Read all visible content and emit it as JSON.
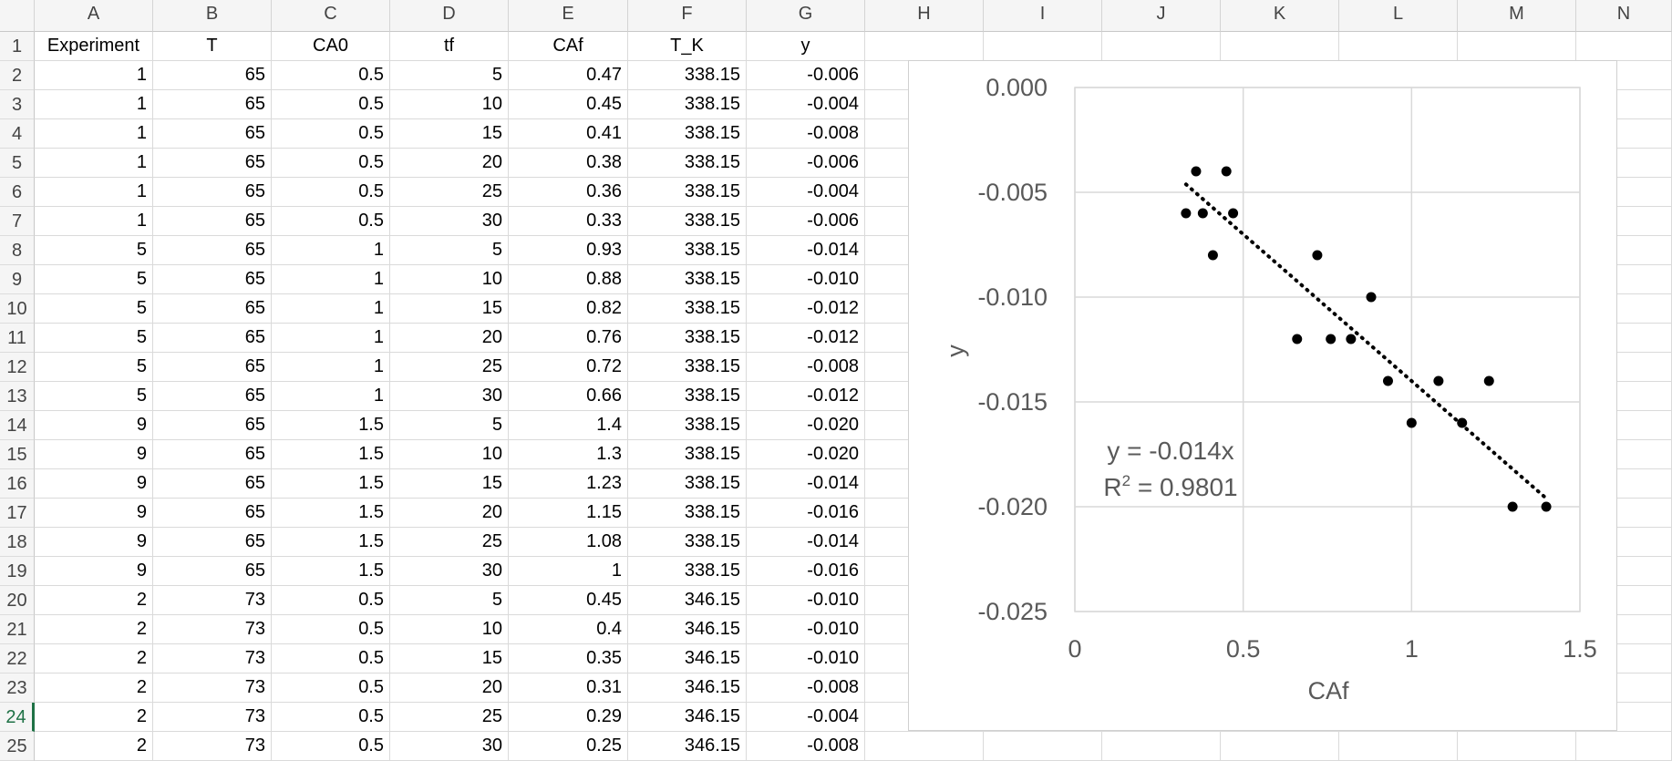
{
  "columns": [
    "A",
    "B",
    "C",
    "D",
    "E",
    "F",
    "G",
    "H",
    "I",
    "J",
    "K",
    "L",
    "M",
    "N"
  ],
  "selected_row": 24,
  "flagged_rows": [
    8,
    14,
    20
  ],
  "headers": [
    "Experiment",
    "T",
    "CA0",
    "tf",
    "CAf",
    "T_K",
    "y"
  ],
  "rows": [
    {
      "row": 2,
      "cells": [
        "1",
        "65",
        "0.5",
        "5",
        "0.47",
        "338.15",
        "-0.006"
      ]
    },
    {
      "row": 3,
      "cells": [
        "1",
        "65",
        "0.5",
        "10",
        "0.45",
        "338.15",
        "-0.004"
      ]
    },
    {
      "row": 4,
      "cells": [
        "1",
        "65",
        "0.5",
        "15",
        "0.41",
        "338.15",
        "-0.008"
      ]
    },
    {
      "row": 5,
      "cells": [
        "1",
        "65",
        "0.5",
        "20",
        "0.38",
        "338.15",
        "-0.006"
      ]
    },
    {
      "row": 6,
      "cells": [
        "1",
        "65",
        "0.5",
        "25",
        "0.36",
        "338.15",
        "-0.004"
      ]
    },
    {
      "row": 7,
      "cells": [
        "1",
        "65",
        "0.5",
        "30",
        "0.33",
        "338.15",
        "-0.006"
      ]
    },
    {
      "row": 8,
      "cells": [
        "5",
        "65",
        "1",
        "5",
        "0.93",
        "338.15",
        "-0.014"
      ]
    },
    {
      "row": 9,
      "cells": [
        "5",
        "65",
        "1",
        "10",
        "0.88",
        "338.15",
        "-0.010"
      ]
    },
    {
      "row": 10,
      "cells": [
        "5",
        "65",
        "1",
        "15",
        "0.82",
        "338.15",
        "-0.012"
      ]
    },
    {
      "row": 11,
      "cells": [
        "5",
        "65",
        "1",
        "20",
        "0.76",
        "338.15",
        "-0.012"
      ]
    },
    {
      "row": 12,
      "cells": [
        "5",
        "65",
        "1",
        "25",
        "0.72",
        "338.15",
        "-0.008"
      ]
    },
    {
      "row": 13,
      "cells": [
        "5",
        "65",
        "1",
        "30",
        "0.66",
        "338.15",
        "-0.012"
      ]
    },
    {
      "row": 14,
      "cells": [
        "9",
        "65",
        "1.5",
        "5",
        "1.4",
        "338.15",
        "-0.020"
      ]
    },
    {
      "row": 15,
      "cells": [
        "9",
        "65",
        "1.5",
        "10",
        "1.3",
        "338.15",
        "-0.020"
      ]
    },
    {
      "row": 16,
      "cells": [
        "9",
        "65",
        "1.5",
        "15",
        "1.23",
        "338.15",
        "-0.014"
      ]
    },
    {
      "row": 17,
      "cells": [
        "9",
        "65",
        "1.5",
        "20",
        "1.15",
        "338.15",
        "-0.016"
      ]
    },
    {
      "row": 18,
      "cells": [
        "9",
        "65",
        "1.5",
        "25",
        "1.08",
        "338.15",
        "-0.014"
      ]
    },
    {
      "row": 19,
      "cells": [
        "9",
        "65",
        "1.5",
        "30",
        "1",
        "338.15",
        "-0.016"
      ]
    },
    {
      "row": 20,
      "cells": [
        "2",
        "73",
        "0.5",
        "5",
        "0.45",
        "346.15",
        "-0.010"
      ]
    },
    {
      "row": 21,
      "cells": [
        "2",
        "73",
        "0.5",
        "10",
        "0.4",
        "346.15",
        "-0.010"
      ]
    },
    {
      "row": 22,
      "cells": [
        "2",
        "73",
        "0.5",
        "15",
        "0.35",
        "346.15",
        "-0.010"
      ]
    },
    {
      "row": 23,
      "cells": [
        "2",
        "73",
        "0.5",
        "20",
        "0.31",
        "346.15",
        "-0.008"
      ]
    },
    {
      "row": 24,
      "cells": [
        "2",
        "73",
        "0.5",
        "25",
        "0.29",
        "346.15",
        "-0.004"
      ]
    },
    {
      "row": 25,
      "cells": [
        "2",
        "73",
        "0.5",
        "30",
        "0.25",
        "346.15",
        "-0.008"
      ]
    }
  ],
  "chart_data": {
    "type": "scatter",
    "title": "",
    "xlabel": "CAf",
    "ylabel": "y",
    "xlim": [
      0,
      1.5
    ],
    "ylim": [
      -0.025,
      0.0
    ],
    "x_ticks": [
      "0",
      "0.5",
      "1",
      "1.5"
    ],
    "y_ticks": [
      "0.000",
      "-0.005",
      "-0.010",
      "-0.015",
      "-0.020",
      "-0.025"
    ],
    "grid": true,
    "legend": "none",
    "marker_color": "#000000",
    "series": [
      {
        "x": [
          0.47,
          0.45,
          0.41,
          0.38,
          0.36,
          0.33,
          0.93,
          0.88,
          0.82,
          0.76,
          0.72,
          0.66,
          1.4,
          1.3,
          1.23,
          1.15,
          1.08,
          1.0
        ],
        "y": [
          -0.006,
          -0.004,
          -0.008,
          -0.006,
          -0.004,
          -0.006,
          -0.014,
          -0.01,
          -0.012,
          -0.012,
          -0.008,
          -0.012,
          -0.02,
          -0.02,
          -0.014,
          -0.016,
          -0.014,
          -0.016
        ]
      }
    ],
    "trendline": {
      "type": "linear",
      "slope": -0.014,
      "x_range": [
        0.33,
        1.4
      ],
      "style": "dotted"
    },
    "equation": "y = -0.014x",
    "r_squared_label": "R",
    "r_squared_sup": "2",
    "r_squared_value": " = 0.9801"
  }
}
